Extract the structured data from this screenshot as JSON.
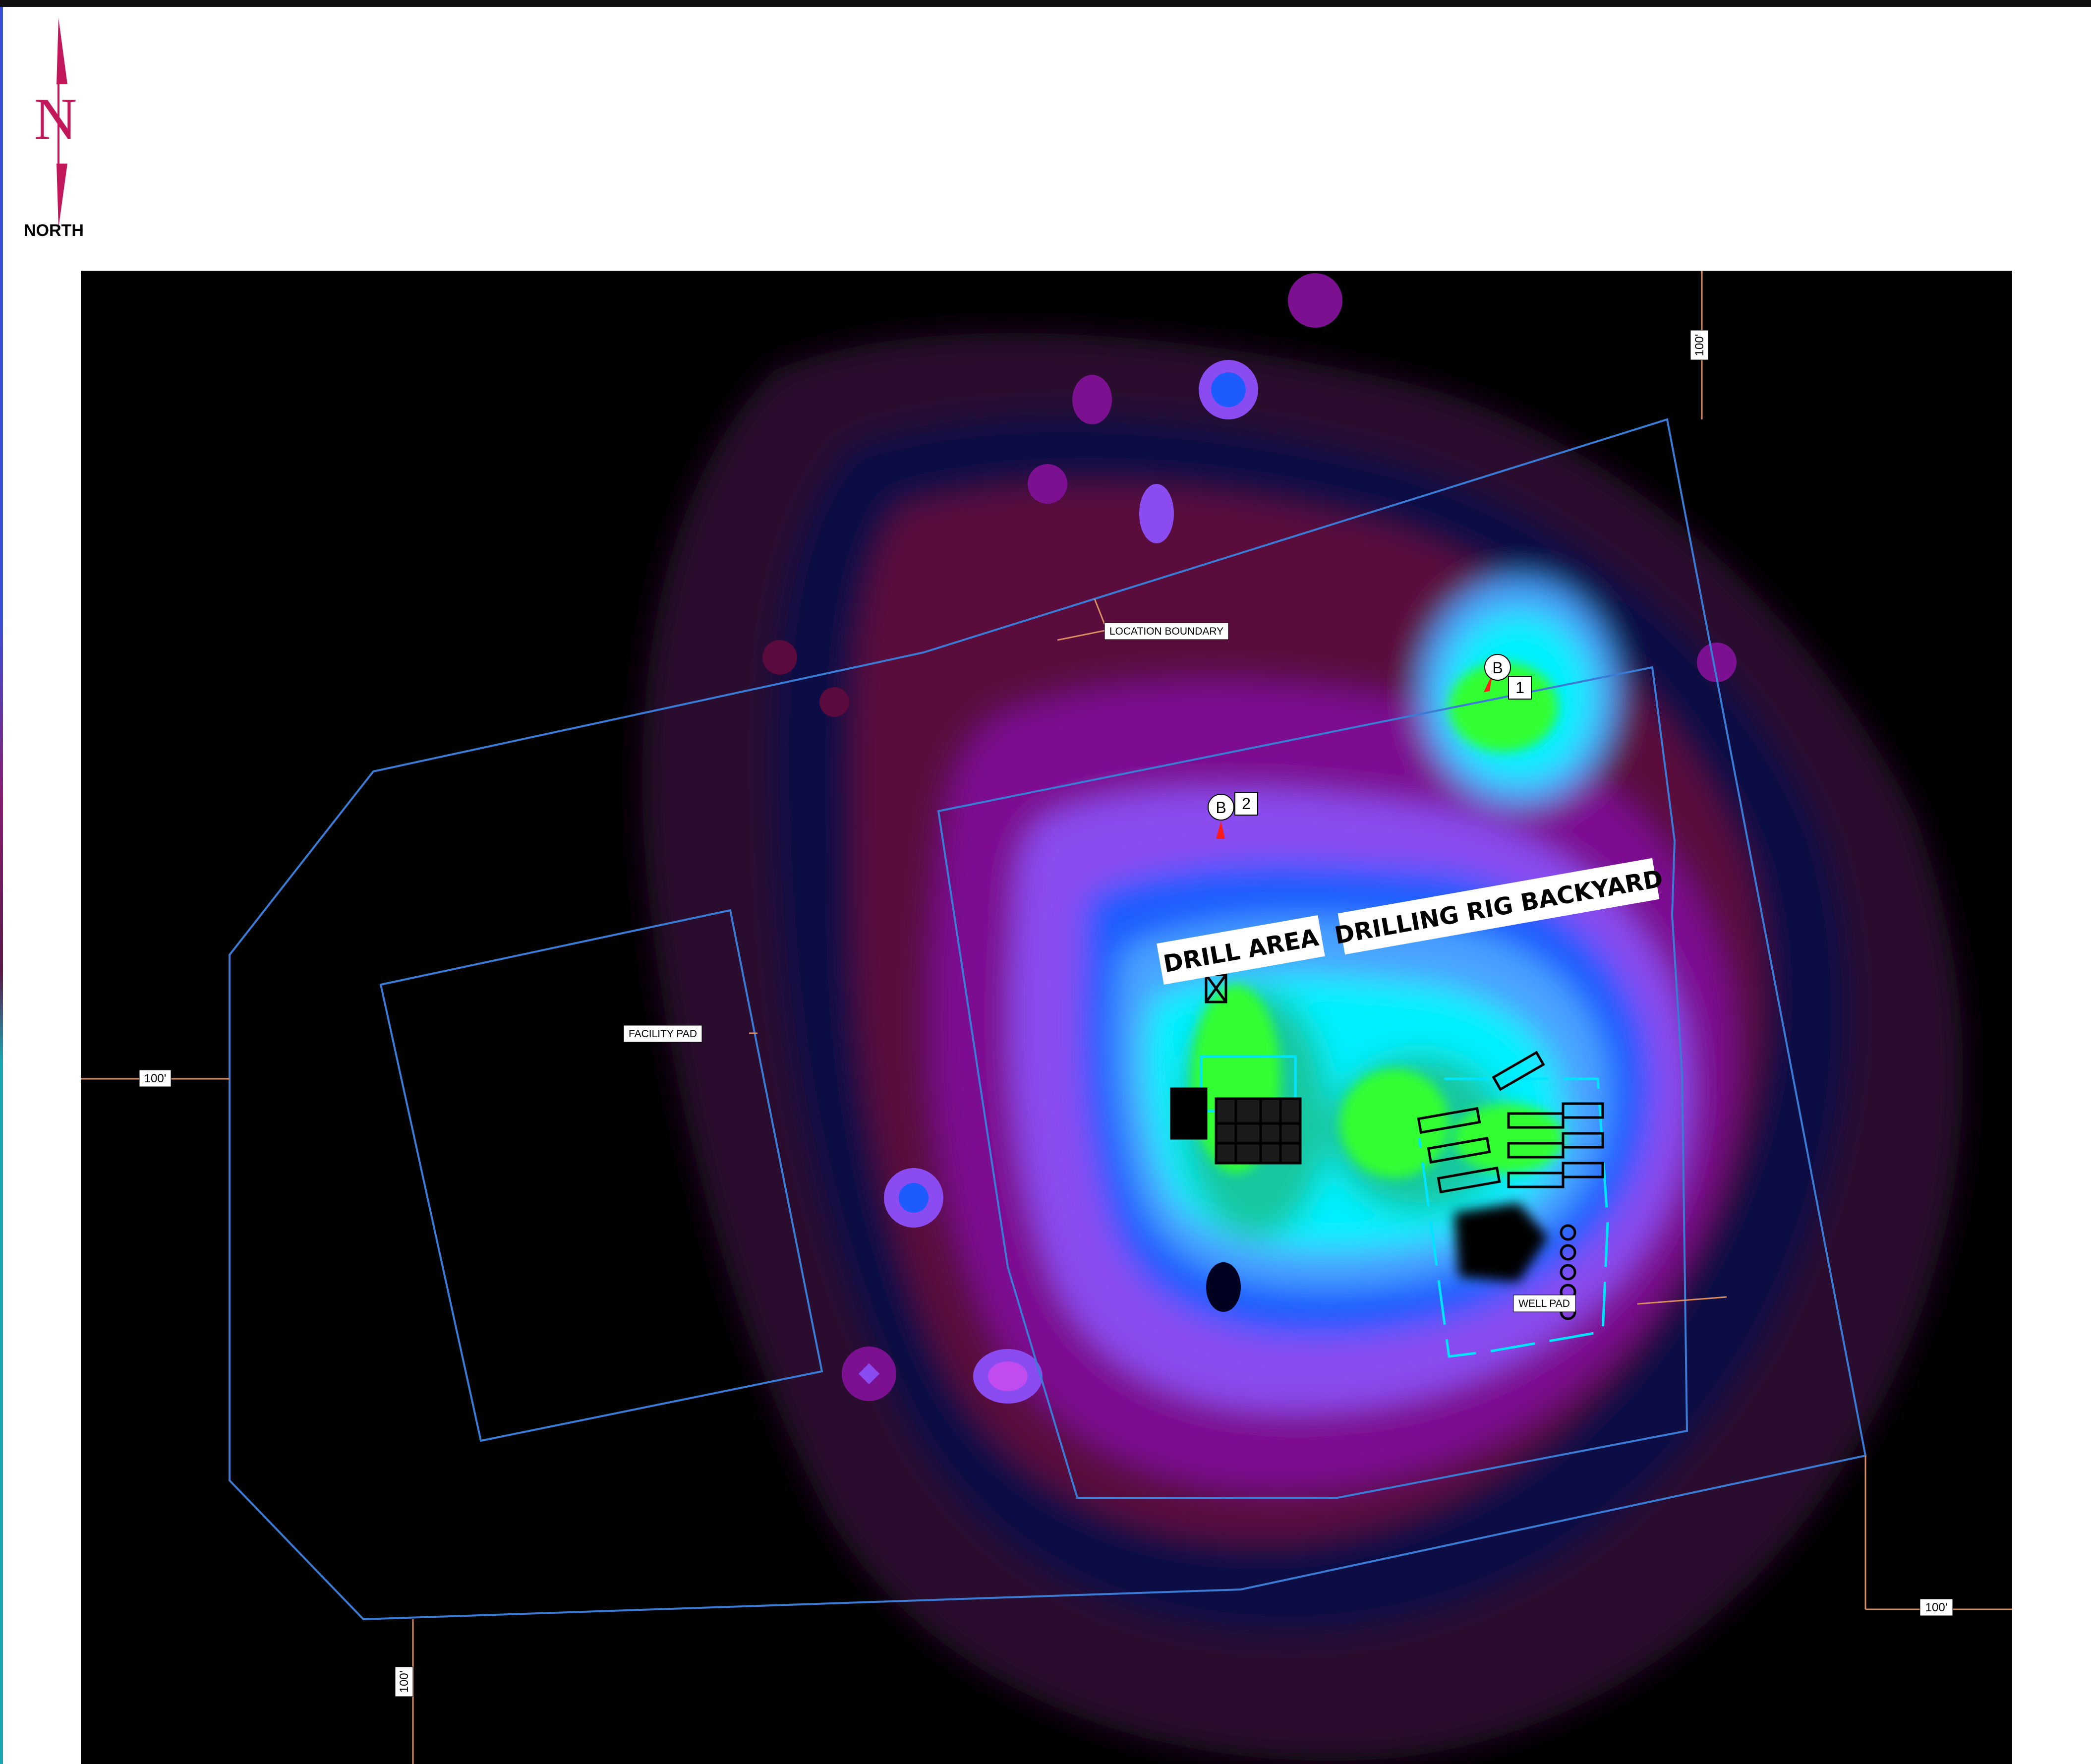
{
  "compass": {
    "letter": "N",
    "label": "NORTH"
  },
  "labels": {
    "location_boundary": "LOCATION BOUNDARY",
    "facility_pad": "FACILITY PAD",
    "well_pad": "WELL PAD",
    "drill_area": "DRILL AREA",
    "drilling_rig_backyard": "DRILLING RIG BACKYARD"
  },
  "dimensions": {
    "top_right": "100'",
    "left": "100'",
    "bottom_left": "100'",
    "bottom_right": "100'"
  },
  "markers": [
    {
      "letter": "B",
      "number": "1"
    },
    {
      "letter": "B",
      "number": "2"
    }
  ],
  "colors": {
    "background": "#000000",
    "boundary_lines": "#3a7bd5",
    "north_arrow": "#c2185b",
    "highlight_outline": "#00e5ff",
    "marker_arrow": "#ff1a1a"
  }
}
